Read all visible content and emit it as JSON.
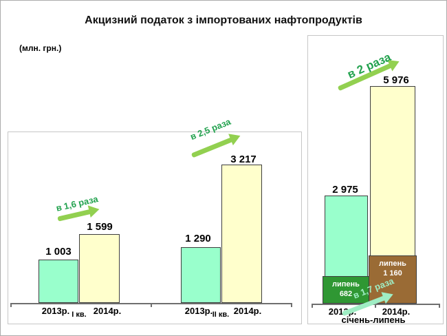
{
  "title": "Акцизний податок з імпортованих нафтопродуктів",
  "unit_label": "(млн. грн.)",
  "chart_data": [
    {
      "type": "bar",
      "group_label": "I кв.",
      "categories": [
        "2013р.",
        "2014р."
      ],
      "values": [
        1003,
        1599
      ],
      "display_values": [
        "1 003",
        "1 599"
      ],
      "annotation": "в 1,6 раза"
    },
    {
      "type": "bar",
      "group_label": "II кв.",
      "categories": [
        "2013р.",
        "2014р."
      ],
      "values": [
        1290,
        3217
      ],
      "display_values": [
        "1 290",
        "3 217"
      ],
      "annotation": "в 2,5 раза"
    },
    {
      "type": "bar",
      "group_label": "січень-липень",
      "categories": [
        "2013р.",
        "2014р."
      ],
      "values": [
        2975,
        5976
      ],
      "display_values": [
        "2 975",
        "5 976"
      ],
      "annotation": "в 2 раза",
      "july_breakdown": {
        "label": "липень",
        "values": [
          682,
          1160
        ],
        "display_values": [
          "682",
          "1 160"
        ],
        "annotation": "в 1,7 раза"
      }
    }
  ],
  "colors": {
    "bar_2013": "#99FFCC",
    "bar_2014": "#FFFFCC",
    "july_2013": "#2F9733",
    "july_2014": "#9A6B35",
    "arrow_green": "#92D050",
    "annotation_green": "#22A24E",
    "annotation_mint": "#9FEDC4"
  }
}
